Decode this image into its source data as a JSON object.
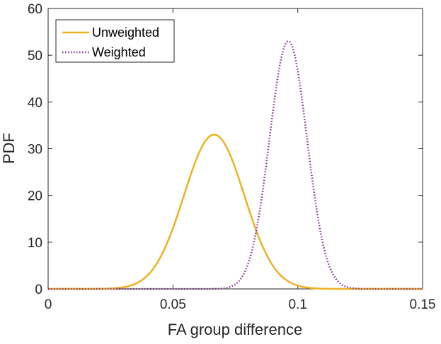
{
  "chart_data": {
    "type": "line",
    "title": "",
    "xlabel": "FA group difference",
    "ylabel": "PDF",
    "xlim": [
      0,
      0.15
    ],
    "ylim": [
      0,
      60
    ],
    "xticks": [
      0,
      0.05,
      0.1,
      0.15
    ],
    "xtick_labels": [
      "0",
      "0.05",
      "0.1",
      "0.15"
    ],
    "yticks": [
      0,
      10,
      20,
      30,
      40,
      50,
      60
    ],
    "ytick_labels": [
      "0",
      "10",
      "20",
      "30",
      "40",
      "50",
      "60"
    ],
    "grid": false,
    "legend_position": "top-left",
    "series": [
      {
        "name": "Unweighted",
        "color": "#EDB120",
        "line_style": "solid",
        "curve": "normal-pdf",
        "mean": 0.0665,
        "sd": 0.01209,
        "peak": 33
      },
      {
        "name": "Weighted",
        "color": "#7E2F8E",
        "line_style": "dotted",
        "curve": "normal-pdf",
        "mean": 0.0962,
        "sd": 0.00753,
        "peak": 53
      }
    ]
  }
}
